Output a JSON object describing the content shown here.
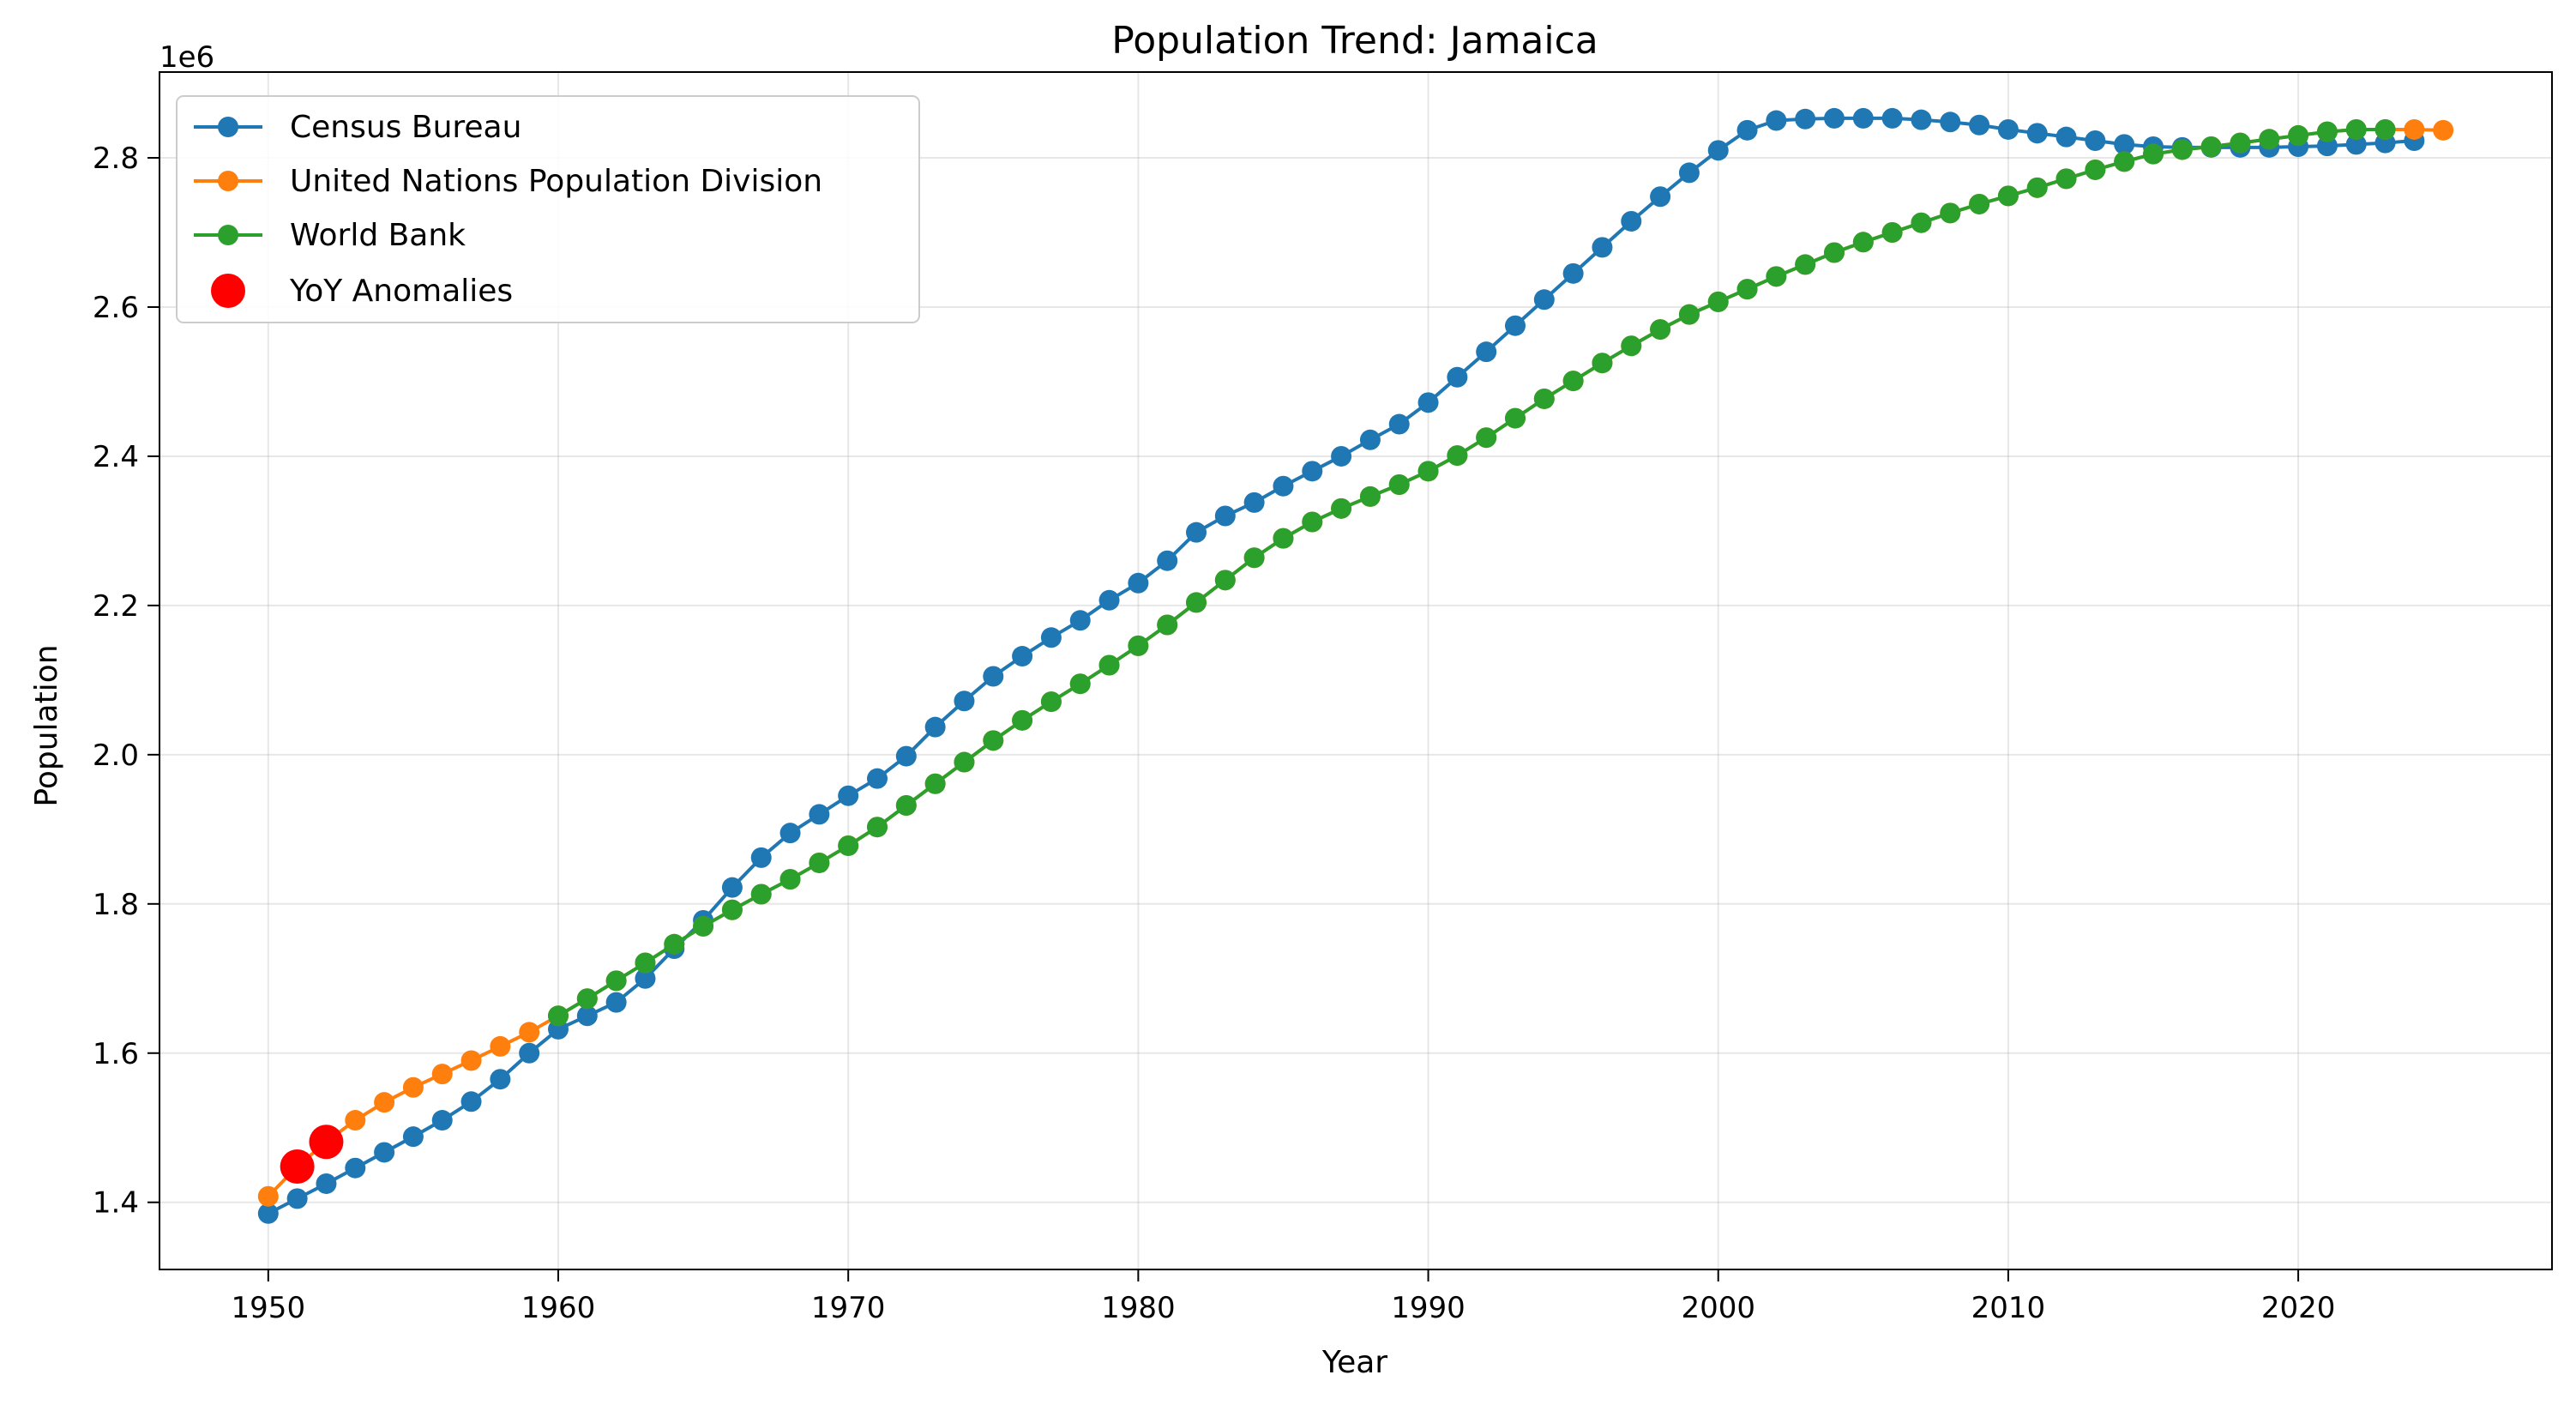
{
  "chart_data": {
    "type": "line",
    "title": "Population Trend: Jamaica",
    "xlabel": "Year",
    "ylabel": "Population",
    "offset_text": "1e6",
    "xlim": [
      1946.25,
      2028.75
    ],
    "ylim": [
      1310000.0,
      2915000.0
    ],
    "x_ticks": [
      1950,
      1960,
      1970,
      1980,
      1990,
      2000,
      2010,
      2020
    ],
    "x_tick_labels": [
      "1950",
      "1960",
      "1970",
      "1980",
      "1990",
      "2000",
      "2010",
      "2020"
    ],
    "y_ticks": [
      1400000,
      1600000,
      1800000,
      2000000,
      2200000,
      2400000,
      2600000,
      2800000
    ],
    "y_tick_labels": [
      "1.4",
      "1.6",
      "1.8",
      "2.0",
      "2.2",
      "2.4",
      "2.6",
      "2.8"
    ],
    "grid": true,
    "legend_position": "upper-left",
    "series": [
      {
        "name": "Census Bureau",
        "color": "#1f77b4",
        "x": [
          1950,
          1951,
          1952,
          1953,
          1954,
          1955,
          1956,
          1957,
          1958,
          1959,
          1960,
          1961,
          1962,
          1963,
          1964,
          1965,
          1966,
          1967,
          1968,
          1969,
          1970,
          1971,
          1972,
          1973,
          1974,
          1975,
          1976,
          1977,
          1978,
          1979,
          1980,
          1981,
          1982,
          1983,
          1984,
          1985,
          1986,
          1987,
          1988,
          1989,
          1990,
          1991,
          1992,
          1993,
          1994,
          1995,
          1996,
          1997,
          1998,
          1999,
          2000,
          2001,
          2002,
          2003,
          2004,
          2005,
          2006,
          2007,
          2008,
          2009,
          2010,
          2011,
          2012,
          2013,
          2014,
          2015,
          2016,
          2017,
          2018,
          2019,
          2020,
          2021,
          2022,
          2023,
          2024
        ],
        "y": [
          1385000,
          1405000,
          1425000,
          1446000,
          1467000,
          1488000,
          1510000,
          1535000,
          1565000,
          1600000,
          1632000,
          1650000,
          1668000,
          1700000,
          1740000,
          1778000,
          1822000,
          1862000,
          1895000,
          1920000,
          1945000,
          1968000,
          1998000,
          2037000,
          2072000,
          2105000,
          2132000,
          2157000,
          2180000,
          2207000,
          2230000,
          2260000,
          2298000,
          2320000,
          2338000,
          2360000,
          2380000,
          2400000,
          2422000,
          2443000,
          2472000,
          2506000,
          2540000,
          2575000,
          2610000,
          2645000,
          2680000,
          2715000,
          2748000,
          2780000,
          2810000,
          2837000,
          2850000,
          2852000,
          2853000,
          2853000,
          2853000,
          2851000,
          2848000,
          2844000,
          2838000,
          2833000,
          2828000,
          2823000,
          2818000,
          2815000,
          2814000,
          2814000,
          2814000,
          2814000,
          2815000,
          2816000,
          2818000,
          2820000,
          2823000
        ]
      },
      {
        "name": "United Nations Population Division",
        "color": "#ff7f0e",
        "x": [
          1950,
          1951,
          1952,
          1953,
          1954,
          1955,
          1956,
          1957,
          1958,
          1959,
          1960,
          1961,
          1962,
          1963,
          1964,
          1965,
          1966,
          1967,
          1968,
          1969,
          1970,
          1971,
          1972,
          1973,
          1974,
          1975,
          1976,
          1977,
          1978,
          1979,
          1980,
          1981,
          1982,
          1983,
          1984,
          1985,
          1986,
          1987,
          1988,
          1989,
          1990,
          1991,
          1992,
          1993,
          1994,
          1995,
          1996,
          1997,
          1998,
          1999,
          2000,
          2001,
          2002,
          2003,
          2004,
          2005,
          2006,
          2007,
          2008,
          2009,
          2010,
          2011,
          2012,
          2013,
          2014,
          2015,
          2016,
          2017,
          2018,
          2019,
          2020,
          2021,
          2022,
          2023,
          2024,
          2025
        ],
        "y": [
          1408000,
          1448000,
          1481000,
          1510000,
          1534000,
          1554000,
          1572000,
          1590000,
          1609000,
          1628000,
          1650000,
          1673000,
          1697000,
          1721000,
          1746000,
          1770000,
          1792000,
          1813000,
          1833000,
          1855000,
          1878000,
          1903000,
          1932000,
          1961000,
          1990000,
          2019000,
          2046000,
          2071000,
          2095000,
          2120000,
          2146000,
          2174000,
          2204000,
          2234000,
          2264000,
          2290000,
          2312000,
          2330000,
          2346000,
          2362000,
          2380000,
          2401000,
          2425000,
          2451000,
          2477000,
          2501000,
          2525000,
          2548000,
          2570000,
          2590000,
          2607000,
          2624000,
          2641000,
          2657000,
          2673000,
          2687000,
          2700000,
          2713000,
          2726000,
          2738000,
          2749000,
          2760000,
          2772000,
          2784000,
          2795000,
          2805000,
          2811000,
          2815000,
          2820000,
          2825000,
          2830000,
          2835000,
          2838000,
          2838000,
          2838000,
          2837000
        ]
      },
      {
        "name": "World Bank",
        "color": "#2ca02c",
        "x": [
          1960,
          1961,
          1962,
          1963,
          1964,
          1965,
          1966,
          1967,
          1968,
          1969,
          1970,
          1971,
          1972,
          1973,
          1974,
          1975,
          1976,
          1977,
          1978,
          1979,
          1980,
          1981,
          1982,
          1983,
          1984,
          1985,
          1986,
          1987,
          1988,
          1989,
          1990,
          1991,
          1992,
          1993,
          1994,
          1995,
          1996,
          1997,
          1998,
          1999,
          2000,
          2001,
          2002,
          2003,
          2004,
          2005,
          2006,
          2007,
          2008,
          2009,
          2010,
          2011,
          2012,
          2013,
          2014,
          2015,
          2016,
          2017,
          2018,
          2019,
          2020,
          2021,
          2022,
          2023
        ],
        "y": [
          1650000,
          1673000,
          1697000,
          1721000,
          1746000,
          1770000,
          1792000,
          1813000,
          1833000,
          1855000,
          1878000,
          1903000,
          1932000,
          1961000,
          1990000,
          2019000,
          2046000,
          2071000,
          2095000,
          2120000,
          2146000,
          2174000,
          2204000,
          2234000,
          2264000,
          2290000,
          2312000,
          2330000,
          2346000,
          2362000,
          2380000,
          2401000,
          2425000,
          2451000,
          2477000,
          2501000,
          2525000,
          2548000,
          2570000,
          2590000,
          2607000,
          2624000,
          2641000,
          2657000,
          2673000,
          2687000,
          2700000,
          2713000,
          2726000,
          2738000,
          2749000,
          2760000,
          2772000,
          2784000,
          2795000,
          2805000,
          2811000,
          2815000,
          2820000,
          2825000,
          2830000,
          2835000,
          2838000,
          2838000
        ]
      }
    ],
    "anomalies": {
      "name": "YoY Anomalies",
      "color": "#ff0000",
      "x": [
        1951,
        1952
      ],
      "y": [
        1448000,
        1481000
      ]
    }
  }
}
